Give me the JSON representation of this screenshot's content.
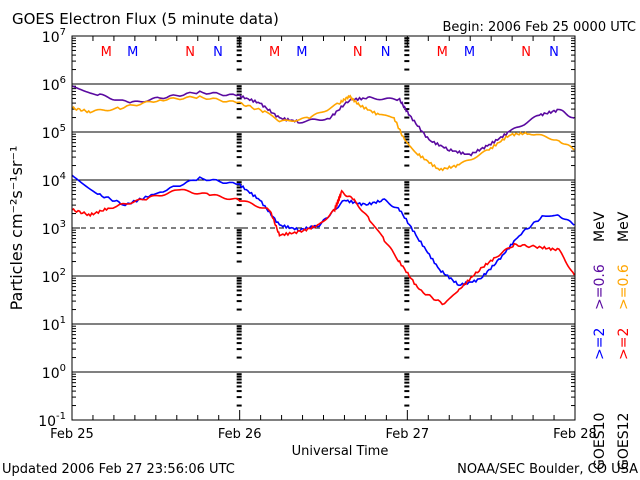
{
  "chart_data": {
    "type": "line",
    "title": "GOES Electron Flux (5 minute data)",
    "begin_label": "Begin: 2006 Feb 25 0000 UTC",
    "xlabel": "Universal Time",
    "ylabel": "Particles cm⁻²s⁻¹sr⁻¹",
    "y_scale": "log",
    "ylim_log10": [
      -1,
      7
    ],
    "y_ticks": [
      {
        "base": "10",
        "exp": "7"
      },
      {
        "base": "10",
        "exp": "6"
      },
      {
        "base": "10",
        "exp": "5"
      },
      {
        "base": "10",
        "exp": "4"
      },
      {
        "base": "10",
        "exp": "3"
      },
      {
        "base": "10",
        "exp": "2"
      },
      {
        "base": "10",
        "exp": "1"
      },
      {
        "base": "10",
        "exp": "0"
      },
      {
        "base": "10",
        "exp": "-1"
      }
    ],
    "xlim_hours": [
      0,
      72
    ],
    "x_ticks": [
      {
        "hour": 0,
        "label": "Feb 25"
      },
      {
        "hour": 24,
        "label": "Feb 26"
      },
      {
        "hour": 48,
        "label": "Feb 27"
      },
      {
        "hour": 72,
        "label": "Feb 28"
      }
    ],
    "threshold_lines_log10": [
      6,
      5,
      4,
      2,
      1,
      0
    ],
    "dashed_line_log10": 3,
    "markers": [
      {
        "hour": 4.9,
        "label": "M",
        "color": "#ff0000"
      },
      {
        "hour": 8.7,
        "label": "M",
        "color": "#0000ff"
      },
      {
        "hour": 16.9,
        "label": "N",
        "color": "#ff0000"
      },
      {
        "hour": 20.9,
        "label": "N",
        "color": "#0000ff"
      },
      {
        "hour": 29,
        "label": "M",
        "color": "#ff0000"
      },
      {
        "hour": 32.9,
        "label": "M",
        "color": "#0000ff"
      },
      {
        "hour": 40.9,
        "label": "N",
        "color": "#ff0000"
      },
      {
        "hour": 44.9,
        "label": "N",
        "color": "#0000ff"
      },
      {
        "hour": 53,
        "label": "M",
        "color": "#ff0000"
      },
      {
        "hour": 56.9,
        "label": "M",
        "color": "#0000ff"
      },
      {
        "hour": 65,
        "label": "N",
        "color": "#ff0000"
      },
      {
        "hour": 69,
        "label": "N",
        "color": "#0000ff"
      }
    ],
    "series": [
      {
        "name": "GOES10 >=0.6 MeV",
        "color": "#5a0aa0",
        "x": [
          0,
          4,
          8.3,
          12.6,
          18.3,
          24,
          26.9,
          29.7,
          32.6,
          36.9,
          39.7,
          42.6,
          46.9,
          48.3,
          51.1,
          54,
          56.9,
          59.7,
          62.6,
          66.9,
          69.7,
          71.9
        ],
        "log10": [
          5.96,
          5.77,
          5.6,
          5.71,
          5.83,
          5.75,
          5.6,
          5.29,
          5.21,
          5.29,
          5.67,
          5.71,
          5.67,
          5.35,
          4.83,
          4.63,
          4.52,
          4.73,
          5.0,
          5.35,
          5.46,
          5.29
        ]
      },
      {
        "name": "GOES12 >=0.6 MeV",
        "color": "#ffa500",
        "x": [
          0,
          2.6,
          6.9,
          12.6,
          18.3,
          24,
          27.6,
          29.7,
          34,
          38.3,
          39.7,
          41.1,
          44,
          46.1,
          47.6,
          49.7,
          52.6,
          55.4,
          59.7,
          62.6,
          65.4,
          69.7,
          71.9
        ],
        "log10": [
          5.5,
          5.42,
          5.5,
          5.67,
          5.73,
          5.6,
          5.42,
          5.21,
          5.29,
          5.6,
          5.75,
          5.56,
          5.35,
          5.29,
          4.83,
          4.52,
          4.21,
          4.31,
          4.63,
          4.94,
          4.98,
          4.83,
          4.63
        ]
      },
      {
        "name": "GOES10 >=2 MeV",
        "color": "#0000ff",
        "x": [
          0,
          4,
          7.6,
          12.6,
          18.3,
          24,
          26.9,
          29.7,
          32.6,
          35.4,
          39,
          41.9,
          44.7,
          46.9,
          49.7,
          52.6,
          55.4,
          58.3,
          61.1,
          64,
          67.6,
          69.7,
          71.9
        ],
        "log10": [
          4.1,
          3.69,
          3.48,
          3.75,
          4.04,
          3.9,
          3.58,
          3.06,
          2.96,
          3.06,
          3.58,
          3.48,
          3.58,
          3.38,
          2.75,
          2.13,
          1.81,
          1.92,
          2.33,
          2.85,
          3.27,
          3.27,
          3.06
        ]
      },
      {
        "name": "GOES12 >=2 MeV",
        "color": "#ff0000",
        "x": [
          0,
          2.6,
          5.4,
          11.1,
          15.4,
          19.7,
          24,
          28.3,
          29.7,
          32.6,
          35.4,
          37.6,
          38.6,
          40.4,
          42.6,
          44.7,
          46.9,
          49.7,
          53.3,
          55.4,
          58.3,
          61.1,
          63.3,
          66.9,
          69.7,
          71.9
        ],
        "log10": [
          3.38,
          3.27,
          3.42,
          3.63,
          3.79,
          3.69,
          3.58,
          3.38,
          2.85,
          2.92,
          3.06,
          3.38,
          3.75,
          3.58,
          3.17,
          2.75,
          2.29,
          1.71,
          1.4,
          1.71,
          2.13,
          2.44,
          2.65,
          2.6,
          2.54,
          2.02
        ]
      }
    ],
    "legend": {
      "goes10": {
        "sat": "GOES10",
        "e2": ">=2",
        "e06": ">=0.6",
        "unit": "MeV",
        "c2": "#0000ff",
        "c06": "#5a0aa0"
      },
      "goes12": {
        "sat": "GOES12",
        "e2": ">=2",
        "e06": ">=0.6",
        "unit": "MeV",
        "c2": "#ff0000",
        "c06": "#ffa500"
      },
      "placement": "right"
    }
  },
  "footer": {
    "updated": "Updated 2006 Feb 27 23:56:06 UTC",
    "source": "NOAA/SEC Boulder, CO USA"
  }
}
